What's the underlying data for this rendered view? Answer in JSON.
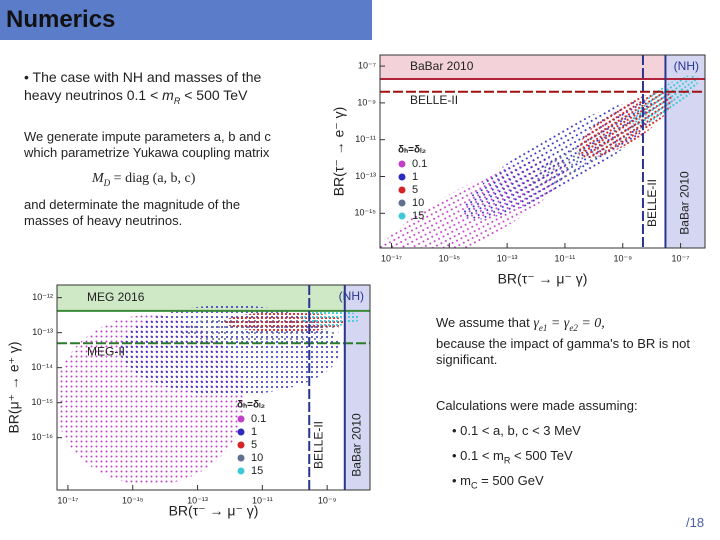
{
  "header": {
    "title": "Numerics"
  },
  "text": {
    "intro": {
      "line1": "• The case with NH and masses of the",
      "line2": "heavy neutrinos 0.1 < ",
      "m": "m",
      "sub": "R",
      "tail": " < 500 TeV"
    },
    "generate": "We generate impute parameters a, b and c which parametrize Yukawa coupling matrix",
    "formula": {
      "m": "M",
      "sub": "D",
      "tail": " = diag (a, b, c)"
    },
    "determinate": "and determinate the magnitude of the masses of heavy neutrinos.",
    "assume": "We assume that",
    "gamma": {
      "g1": "γ",
      "s1": "e1",
      "mid": " = γ",
      "s2": "e2",
      "tail": " = 0,"
    },
    "because": "because the impact of gamma's to BR is not significant.",
    "calc": "Calculations were made assuming:",
    "bullet1": "• 0.1 < a, b, c < 3 MeV",
    "bullet2": {
      "head": "• 0.1 < m",
      "sub": "R",
      "tail": " < 500 TeV"
    },
    "bullet3": {
      "head": "• m",
      "sub": "C",
      "tail": " = 500 GeV"
    },
    "page": "/18"
  },
  "chart_data": [
    {
      "type": "scatter",
      "xscale": "log",
      "yscale": "log",
      "xlabel": "BR(τ⁻ → μ⁻ γ)",
      "ylabel": "BR(τ⁻ → e⁻ γ)",
      "annotation": "(NH)",
      "xlim": [
        4e-18,
        7e-07
      ],
      "ylim": [
        1.3e-17,
        4e-07
      ],
      "xticks": [
        {
          "value": 1e-17,
          "label": "10⁻¹⁷"
        },
        {
          "value": 1e-15,
          "label": "10⁻¹⁵"
        },
        {
          "value": 1e-13,
          "label": "10⁻¹³"
        },
        {
          "value": 1e-11,
          "label": "10⁻¹¹"
        },
        {
          "value": 1e-09,
          "label": "10⁻⁹"
        },
        {
          "value": 1e-07,
          "label": "10⁻⁷"
        }
      ],
      "yticks": [
        {
          "value": 1e-07,
          "label": "10⁻⁷"
        },
        {
          "value": 1e-09,
          "label": "10⁻⁹"
        },
        {
          "value": 1e-11,
          "label": "10⁻¹¹"
        },
        {
          "value": 1e-13,
          "label": "10⁻¹³"
        },
        {
          "value": 1e-15,
          "label": "10⁻¹⁵"
        }
      ],
      "limits": [
        {
          "label": "BaBar 2010",
          "axis": "y",
          "value": 2e-08,
          "color": "#b0243a",
          "fill": "#f3d3d9"
        },
        {
          "label": "BELLE-II",
          "axis": "y",
          "value": 4e-09,
          "color": "#a01010"
        },
        {
          "label": "BELLE-II",
          "axis": "x",
          "value": 5e-09,
          "color": "#2a3590"
        },
        {
          "label": "BaBar 2010",
          "axis": "x",
          "value": 3e-08,
          "color": "#2a3590",
          "fill": "#d5d7f2"
        }
      ],
      "legend_title": "δₕ=δₗ₂",
      "series": [
        {
          "name": "0.1",
          "color": "#c23fc8"
        },
        {
          "name": "1",
          "color": "#2b2bbf"
        },
        {
          "name": "5",
          "color": "#d42424"
        },
        {
          "name": "10",
          "color": "#5f7090"
        },
        {
          "name": "15",
          "color": "#3fc8da"
        }
      ]
    },
    {
      "type": "scatter",
      "xscale": "log",
      "yscale": "log",
      "xlabel": "BR(τ⁻ → μ⁻ γ)",
      "ylabel": "BR(μ⁺ → e⁺ γ)",
      "annotation": "(NH)",
      "xlim": [
        4.6e-18,
        2.1e-08
      ],
      "ylim": [
        3.2e-18,
        2.3e-12
      ],
      "xticks": [
        {
          "value": 1e-17,
          "label": "10⁻¹⁷"
        },
        {
          "value": 1e-15,
          "label": "10⁻¹⁵"
        },
        {
          "value": 1e-13,
          "label": "10⁻¹³"
        },
        {
          "value": 1e-11,
          "label": "10⁻¹¹"
        },
        {
          "value": 1e-09,
          "label": "10⁻⁹"
        }
      ],
      "yticks": [
        {
          "value": 1e-12,
          "label": "10⁻¹²"
        },
        {
          "value": 1e-13,
          "label": "10⁻¹³"
        },
        {
          "value": 1e-14,
          "label": "10⁻¹⁴"
        },
        {
          "value": 1e-15,
          "label": "10⁻¹⁵"
        },
        {
          "value": 1e-16,
          "label": "10⁻¹⁶"
        }
      ],
      "limits": [
        {
          "label": "MEG 2016",
          "axis": "y",
          "value": 4.2e-13,
          "color": "#3a8a3a",
          "fill": "#cfe8c6"
        },
        {
          "label": "MEG-II",
          "axis": "y",
          "value": 5e-14,
          "color": "#2c7a2c"
        },
        {
          "label": "BELLE-II",
          "axis": "x",
          "value": 2.8e-10,
          "color": "#2a3590"
        },
        {
          "label": "BaBar 2010",
          "axis": "x",
          "value": 3.5e-09,
          "color": "#2a3590",
          "fill": "#d5d7f2"
        }
      ],
      "legend_title": "δₕ=δₗ₂",
      "series": [
        {
          "name": "0.1",
          "color": "#c23fc8"
        },
        {
          "name": "1",
          "color": "#2b2bbf"
        },
        {
          "name": "5",
          "color": "#d42424"
        },
        {
          "name": "10",
          "color": "#5f7090"
        },
        {
          "name": "15",
          "color": "#3fc8da"
        }
      ]
    }
  ]
}
